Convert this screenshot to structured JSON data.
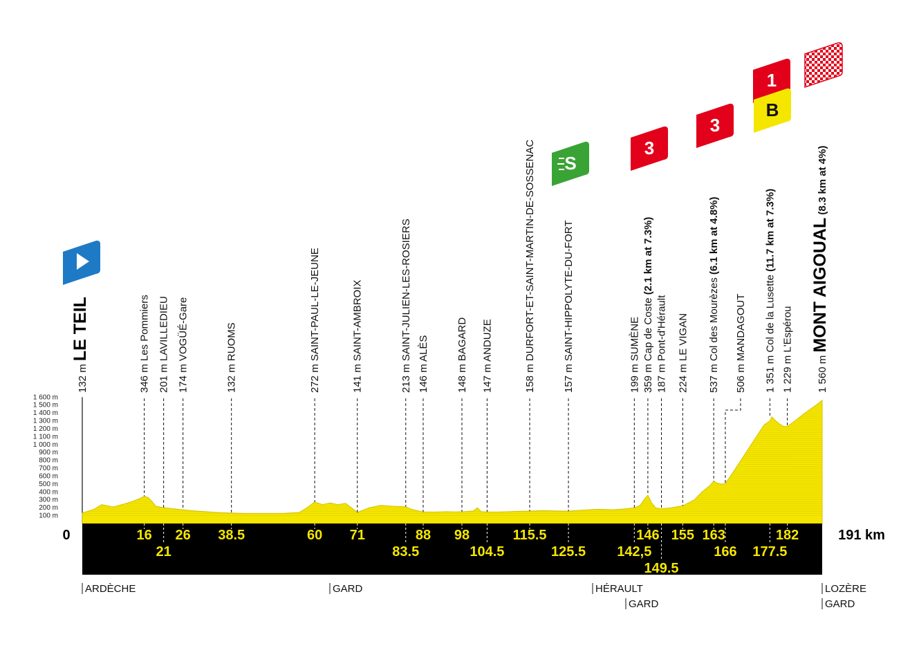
{
  "chart_data": {
    "type": "area",
    "title": "",
    "xlabel": "",
    "ylabel": "",
    "x_unit": "km",
    "xlim": [
      0,
      191
    ],
    "ylim": [
      0,
      1600
    ],
    "fill_color": "#f5e600",
    "band_color": "#000000",
    "y_ticks": [
      "100 m",
      "200 m",
      "300 m",
      "400 m",
      "500 m",
      "600 m",
      "700 m",
      "800 m",
      "900 m",
      "1 000 m",
      "1 100 m",
      "1 200 m",
      "1 300 m",
      "1 400 m",
      "1 500 m",
      "1 600 m"
    ],
    "start_km_label": "0",
    "end_km_label": "191 km",
    "profile": {
      "x": [
        0,
        3,
        5,
        8,
        11,
        13,
        15,
        16,
        17,
        18,
        19,
        21,
        23,
        26,
        29,
        32,
        35,
        38.5,
        42,
        47,
        52,
        56,
        58,
        60,
        62,
        64,
        66,
        68,
        70,
        71,
        72,
        74,
        77,
        80,
        83.5,
        85,
        88,
        91,
        94,
        96,
        98,
        101,
        102,
        103,
        104.5,
        107,
        110,
        113,
        115.5,
        119,
        122,
        125.5,
        129,
        133,
        137,
        140,
        142.5,
        144,
        145,
        146,
        147,
        148,
        149.5,
        152,
        155,
        158,
        160,
        162,
        163,
        164,
        165,
        166,
        168,
        170,
        172,
        174,
        176,
        177.5,
        178,
        179,
        180,
        181,
        182,
        184,
        186,
        188,
        190,
        191
      ],
      "y": [
        132,
        180,
        240,
        210,
        250,
        280,
        320,
        346,
        330,
        280,
        220,
        201,
        190,
        174,
        160,
        150,
        140,
        132,
        128,
        128,
        130,
        140,
        200,
        272,
        240,
        260,
        240,
        255,
        180,
        141,
        160,
        200,
        230,
        220,
        213,
        180,
        146,
        145,
        150,
        148,
        148,
        160,
        200,
        150,
        147,
        145,
        150,
        155,
        158,
        165,
        160,
        157,
        170,
        180,
        175,
        185,
        199,
        230,
        300,
        359,
        260,
        200,
        187,
        200,
        224,
        300,
        400,
        480,
        537,
        510,
        500,
        506,
        650,
        800,
        950,
        1100,
        1250,
        1300,
        1351,
        1300,
        1260,
        1229,
        1229,
        1300,
        1380,
        1450,
        1520,
        1560
      ]
    },
    "waypoints": [
      {
        "km": 0,
        "alt": "132 m",
        "name": "LE TEIL",
        "style": "xl",
        "km_label": ""
      },
      {
        "km": 16,
        "alt": "346 m",
        "name": "Les Pommiers",
        "style": "normal",
        "km_label": "16",
        "km_row": 1
      },
      {
        "km": 21,
        "alt": "201 m",
        "name": "LAVILLEDIEU",
        "style": "normal",
        "km_label": "21",
        "km_row": 2
      },
      {
        "km": 26,
        "alt": "174 m",
        "name": "VOGÜÉ-Gare",
        "style": "normal",
        "km_label": "26",
        "km_row": 1
      },
      {
        "km": 38.5,
        "alt": "132 m",
        "name": "RUOMS",
        "style": "normal",
        "km_label": "38.5",
        "km_row": 1
      },
      {
        "km": 60,
        "alt": "272 m",
        "name": "SAINT-PAUL-LE-JEUNE",
        "style": "normal",
        "km_label": "60",
        "km_row": 1
      },
      {
        "km": 71,
        "alt": "141 m",
        "name": "SAINT-AMBROIX",
        "style": "normal",
        "km_label": "71",
        "km_row": 1
      },
      {
        "km": 83.5,
        "alt": "213 m",
        "name": "SAINT-JULIEN-LES-ROSIERS",
        "style": "normal",
        "km_label": "83.5",
        "km_row": 2
      },
      {
        "km": 88,
        "alt": "146 m",
        "name": "ALÈS",
        "style": "normal",
        "km_label": "88",
        "km_row": 1
      },
      {
        "km": 98,
        "alt": "148 m",
        "name": "BAGARD",
        "style": "normal",
        "km_label": "98",
        "km_row": 1
      },
      {
        "km": 104.5,
        "alt": "147 m",
        "name": "ANDUZE",
        "style": "normal",
        "km_label": "104.5",
        "km_row": 2
      },
      {
        "km": 115.5,
        "alt": "158 m",
        "name": "DURFORT-ET-SAINT-MARTIN-DE-SOSSENAC",
        "style": "normal",
        "km_label": "115.5",
        "km_row": 1
      },
      {
        "km": 125.5,
        "alt": "157 m",
        "name": "SAINT-HIPPOLYTE-DU-FORT",
        "style": "normal",
        "km_label": "125.5",
        "km_row": 2
      },
      {
        "km": 142.5,
        "alt": "199 m",
        "name": "SUMÈNE",
        "style": "normal",
        "km_label": "142,5",
        "km_row": 2
      },
      {
        "km": 146,
        "alt": "359 m",
        "name": "Cap de Coste",
        "climb": "(2.1 km at 7.3%)",
        "style": "normal",
        "km_label": "146",
        "km_row": 1
      },
      {
        "km": 149.5,
        "alt": "187 m",
        "name": "Pont-d'Hérault",
        "style": "normal",
        "km_label": "149.5",
        "km_row": 3
      },
      {
        "km": 155,
        "alt": "224 m",
        "name": "LE VIGAN",
        "style": "normal",
        "km_label": "155",
        "km_row": 1
      },
      {
        "km": 163,
        "alt": "537 m",
        "name": "Col des Mourèzes",
        "climb": "(6.1 km at 4.8%)",
        "style": "normal",
        "km_label": "163",
        "km_row": 1
      },
      {
        "km": 166,
        "alt": "506 m",
        "name": "MANDAGOUT",
        "style": "normal",
        "km_label": "166",
        "km_row": 2,
        "offset_label": true
      },
      {
        "km": 177.5,
        "alt": "1 351 m",
        "name": "Col de la Lusette",
        "climb": "(11.7 km at 7.3%)",
        "style": "normal",
        "km_label": "177.5",
        "km_row": 2
      },
      {
        "km": 182,
        "alt": "1 229 m",
        "name": "L'Espérou",
        "style": "normal",
        "km_label": "182",
        "km_row": 1
      },
      {
        "km": 191,
        "alt": "1 560 m",
        "name": "MONT AIGOUAL",
        "climb": "(8.3 km at 4%)",
        "style": "xl",
        "km_label": ""
      }
    ],
    "markers": [
      {
        "km": 0,
        "type": "start",
        "text": "",
        "color": "#1f7ac6"
      },
      {
        "km": 125.5,
        "type": "sprint",
        "text": "S",
        "color": "#3aa335"
      },
      {
        "km": 146,
        "type": "climb",
        "text": "3",
        "color": "#e2001a"
      },
      {
        "km": 163,
        "type": "climb",
        "text": "3",
        "color": "#e2001a"
      },
      {
        "km": 177.5,
        "type": "climb",
        "text": "1",
        "color": "#e2001a"
      },
      {
        "km": 177.5,
        "type": "bonus",
        "text": "B",
        "color": "#f5e600"
      },
      {
        "km": 191,
        "type": "finish",
        "text": "",
        "color": "#e2001a"
      }
    ],
    "departments": [
      {
        "km": 0,
        "label": "ARDÈCHE",
        "row": 1
      },
      {
        "km": 65,
        "label": "GARD",
        "row": 1
      },
      {
        "km": 133,
        "label": "HÉRAULT",
        "row": 1
      },
      {
        "km": 141,
        "label": "GARD",
        "row": 2
      },
      {
        "km": 191,
        "label": "LOZÈRE",
        "row": 1
      },
      {
        "km": 191,
        "label": "GARD",
        "row": 2
      }
    ]
  }
}
